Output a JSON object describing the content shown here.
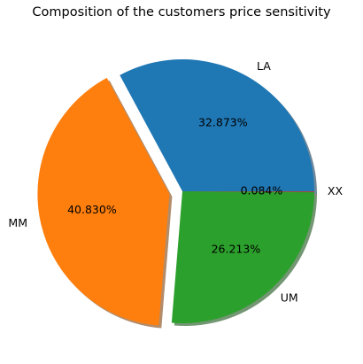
{
  "chart_data": {
    "type": "pie",
    "title": "Composition of the customers price sensitivity",
    "slices": [
      {
        "label": "LA",
        "value": 32.873,
        "pct_label": "32.873%",
        "color": "#1f77b4",
        "exploded": false
      },
      {
        "label": "MM",
        "value": 40.83,
        "pct_label": "40.830%",
        "color": "#ff7f0e",
        "exploded": true
      },
      {
        "label": "UM",
        "value": 26.213,
        "pct_label": "26.213%",
        "color": "#2ca02c",
        "exploded": false
      },
      {
        "label": "XX",
        "value": 0.084,
        "pct_label": "0.084%",
        "color": "#d62728",
        "exploded": false
      }
    ],
    "start_angle_deg": 0,
    "direction": "counterclockwise",
    "shadow": true
  }
}
